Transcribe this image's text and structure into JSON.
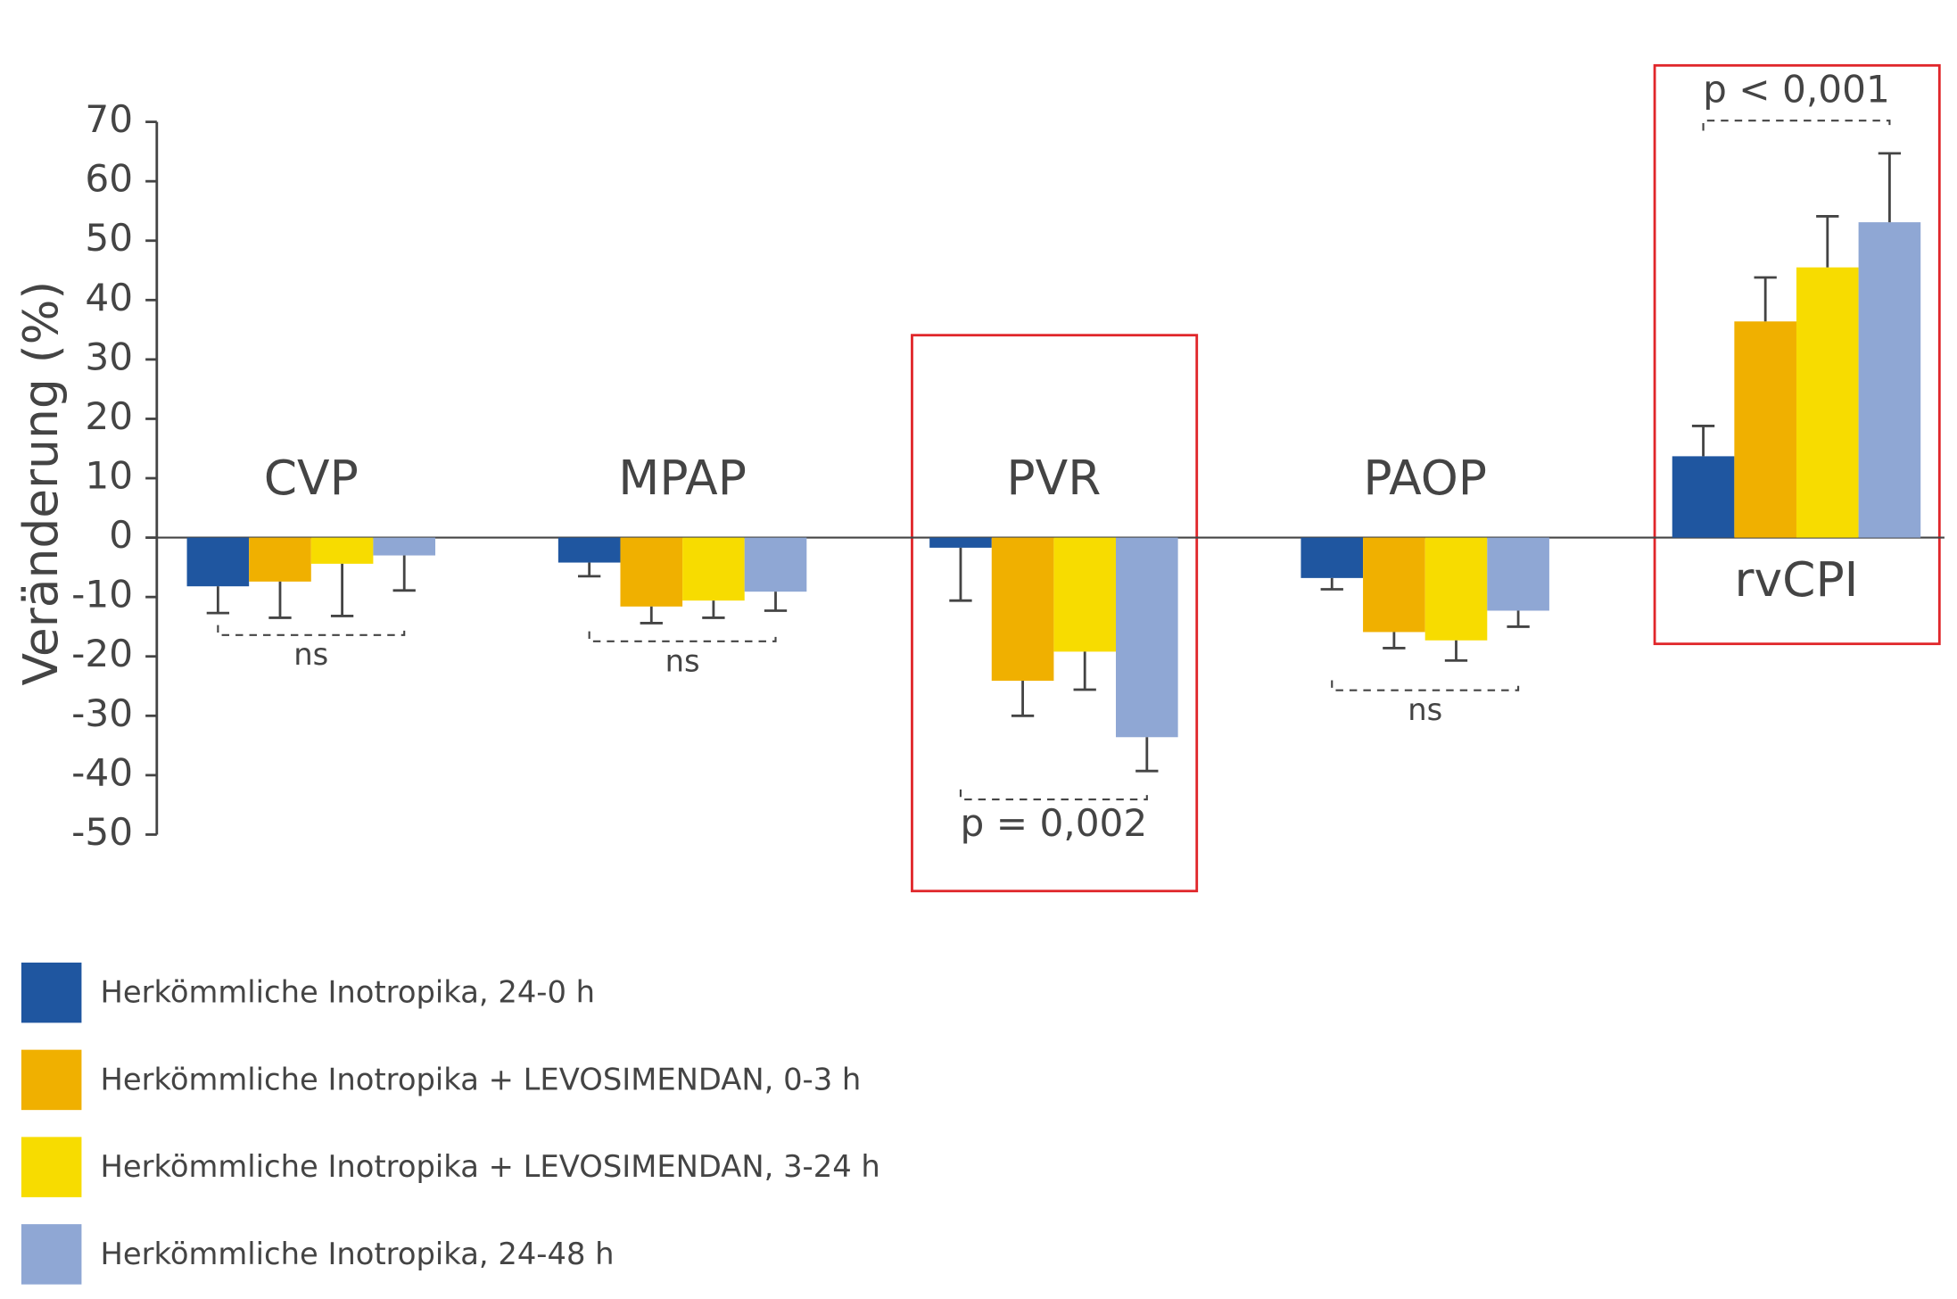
{
  "chart_data": {
    "type": "bar",
    "ylabel": "Veränderung (%)",
    "categories": [
      "CVP",
      "MPAP",
      "PVR",
      "PAOP",
      "rvCPI"
    ],
    "series": [
      {
        "name": "Herkömmliche Inotropika, 24-0 h",
        "color": "#1f56a0",
        "values": [
          -8.2,
          -4.2,
          -1.7,
          -6.8,
          13.7
        ],
        "errors": [
          4.5,
          2.3,
          8.9,
          1.9,
          5.1
        ]
      },
      {
        "name": "Herkömmliche Inotropika + LEVOSIMENDAN, 0-3 h",
        "color": "#f0b000",
        "values": [
          -7.4,
          -11.6,
          -24.1,
          -15.9,
          36.4
        ],
        "errors": [
          6.1,
          2.8,
          5.9,
          2.7,
          7.4
        ]
      },
      {
        "name": "Herkömmliche Inotropika + LEVOSIMENDAN, 3-24 h",
        "color": "#f7dc00",
        "values": [
          -4.4,
          -10.6,
          -19.2,
          -17.3,
          45.5
        ],
        "errors": [
          8.8,
          2.9,
          6.4,
          3.4,
          8.6
        ]
      },
      {
        "name": "Herkömmliche Inotropika, 24-48 h",
        "color": "#8fa7d4",
        "values": [
          -3.0,
          -9.1,
          -33.6,
          -12.3,
          53.1
        ],
        "errors": [
          5.9,
          3.2,
          5.7,
          2.7,
          11.6
        ]
      }
    ],
    "annotations": [
      "ns",
      "ns",
      "p = 0,002",
      "ns",
      "p < 0,001"
    ],
    "ylim": [
      -50,
      70
    ],
    "yticks": [
      -50,
      -40,
      -30,
      -20,
      -10,
      0,
      10,
      20,
      30,
      40,
      50,
      60,
      70
    ]
  }
}
